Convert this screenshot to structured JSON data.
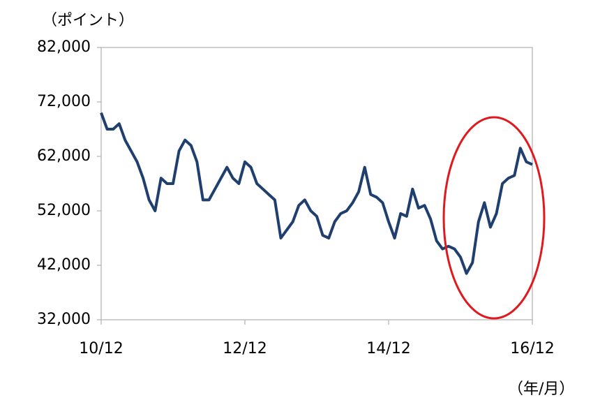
{
  "chart_data": {
    "type": "line",
    "y_label": "（ポイント）",
    "x_label": "（年/月）",
    "categories": [
      "10/12",
      null,
      null,
      null,
      null,
      null,
      null,
      null,
      null,
      null,
      null,
      null,
      null,
      null,
      null,
      null,
      null,
      null,
      null,
      null,
      null,
      null,
      null,
      null,
      "12/12",
      null,
      null,
      null,
      null,
      null,
      null,
      null,
      null,
      null,
      null,
      null,
      null,
      null,
      null,
      null,
      null,
      null,
      null,
      null,
      null,
      null,
      null,
      null,
      "14/12",
      null,
      null,
      null,
      null,
      null,
      null,
      null,
      null,
      null,
      null,
      null,
      null,
      null,
      null,
      null,
      null,
      null,
      null,
      null,
      null,
      null,
      null,
      null,
      "16/12"
    ],
    "values": [
      70000,
      67000,
      67000,
      68000,
      65000,
      63000,
      61000,
      58000,
      54000,
      52000,
      58000,
      57000,
      57000,
      63000,
      65000,
      64000,
      61000,
      54000,
      54000,
      56000,
      58000,
      60000,
      58000,
      57000,
      61000,
      60000,
      57000,
      56000,
      55000,
      54000,
      47000,
      48500,
      50000,
      53000,
      54000,
      52000,
      51000,
      47500,
      47000,
      50000,
      51500,
      52000,
      53500,
      55500,
      60000,
      55000,
      54500,
      53500,
      50000,
      47000,
      51500,
      51000,
      56000,
      52500,
      53000,
      50500,
      46500,
      45000,
      45500,
      45000,
      43500,
      40500,
      42500,
      50000,
      53500,
      49000,
      51500,
      57000,
      58000,
      58500,
      63500,
      61000,
      60500
    ],
    "color": "#1f3f6e",
    "ylim": [
      32000,
      82000
    ],
    "yticks": [
      {
        "value": 32000,
        "label": "32,000"
      },
      {
        "value": 42000,
        "label": "42,000"
      },
      {
        "value": 52000,
        "label": "52,000"
      },
      {
        "value": 62000,
        "label": "62,000"
      },
      {
        "value": 72000,
        "label": "72,000"
      },
      {
        "value": 82000,
        "label": "82,000"
      }
    ]
  }
}
